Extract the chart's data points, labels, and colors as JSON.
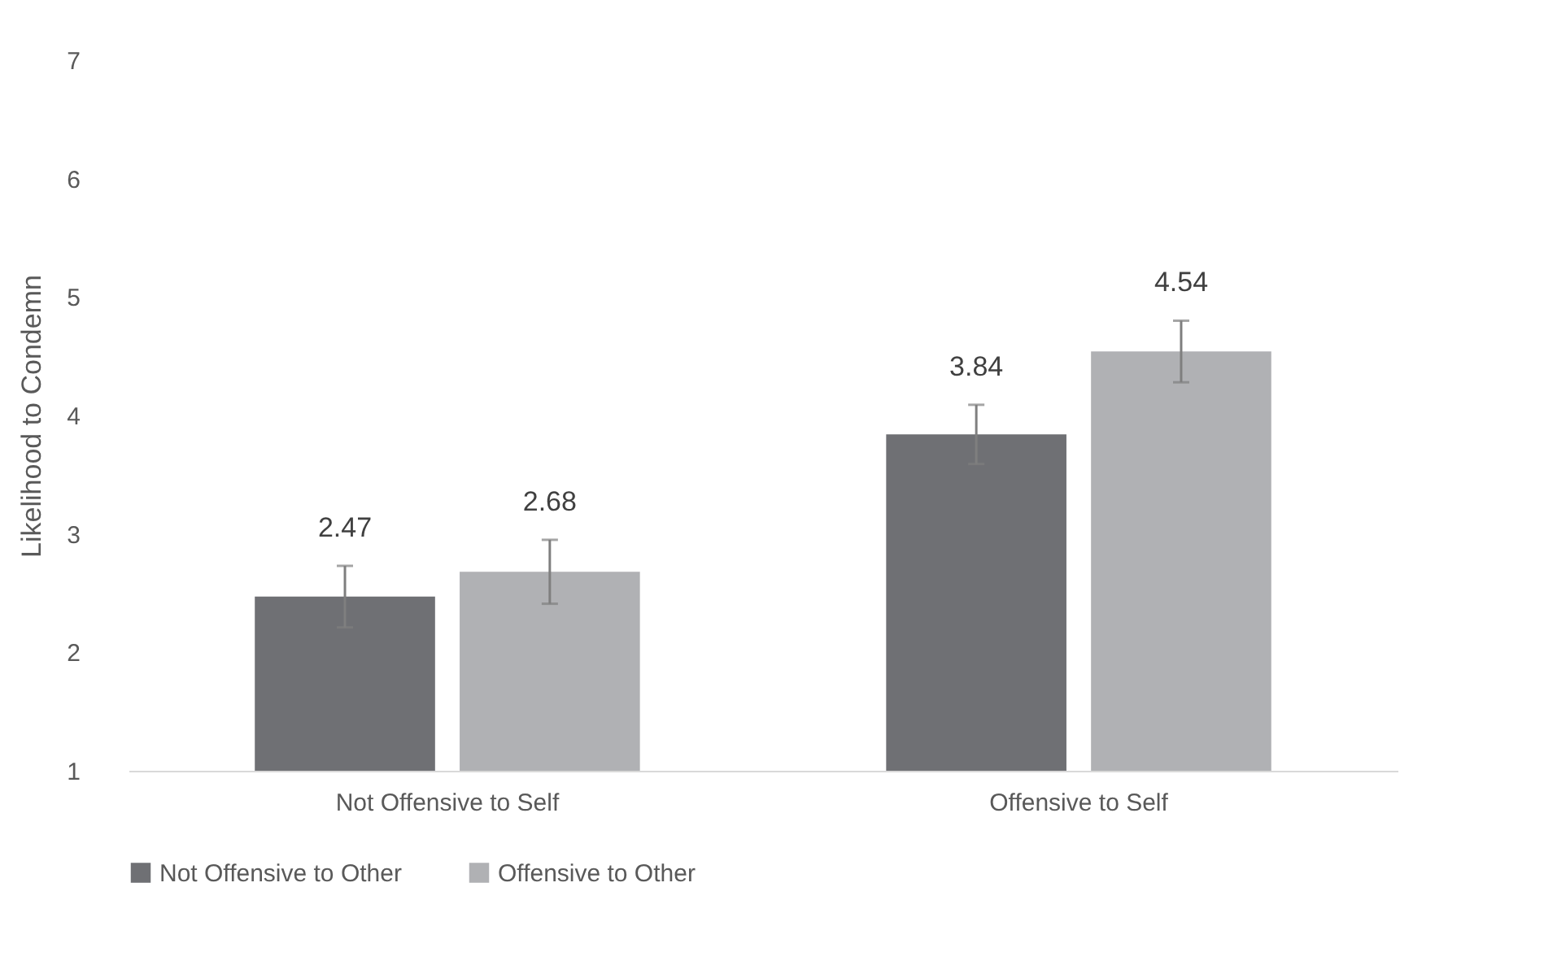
{
  "chart_data": {
    "type": "bar",
    "ylabel": "Likelihood to Condemn",
    "categories": [
      "Not Offensive to Self",
      "Offensive to Self"
    ],
    "series": [
      {
        "name": "Not Offensive to Other",
        "color": "#6f7074",
        "values": [
          2.47,
          3.84
        ],
        "errors": [
          0.26,
          0.25
        ]
      },
      {
        "name": "Offensive to Other",
        "color": "#b0b1b4",
        "values": [
          2.68,
          4.54
        ],
        "errors": [
          0.27,
          0.26
        ]
      }
    ],
    "ylim": [
      1,
      7
    ],
    "yticks": [
      1,
      2,
      3,
      4,
      5,
      6,
      7
    ],
    "grid": false,
    "legend": "bottom",
    "data_labels": true
  }
}
